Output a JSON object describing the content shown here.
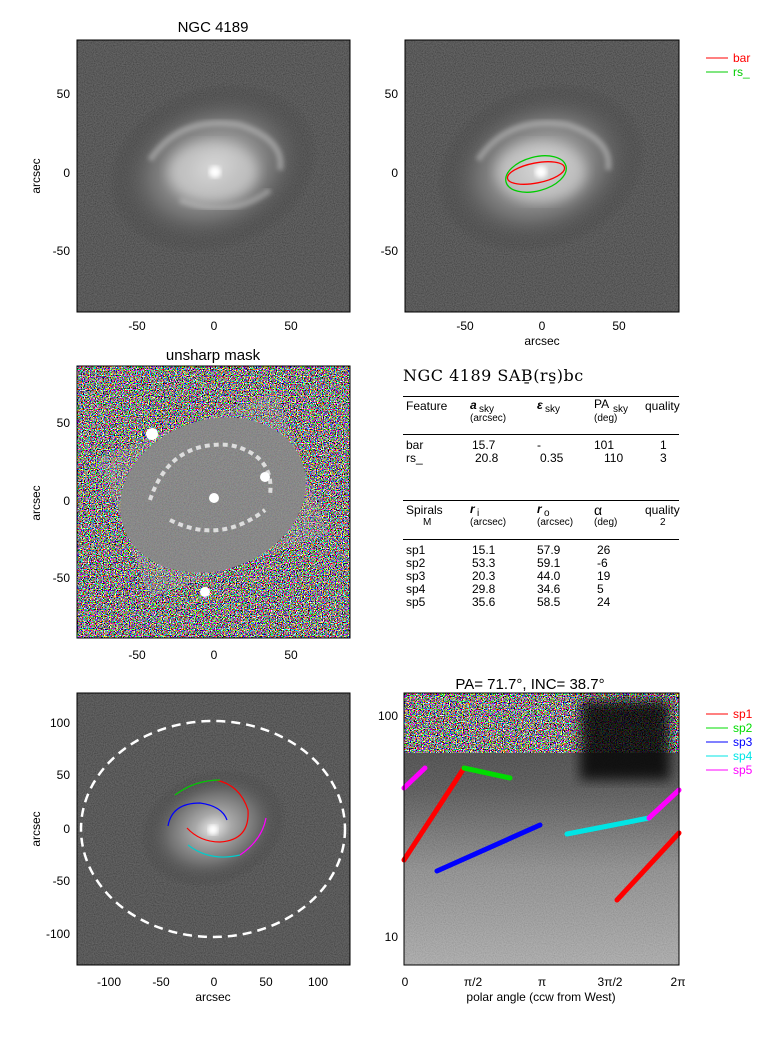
{
  "panel1": {
    "title": "NGC 4189",
    "ylabel": "arcsec",
    "yticks": [
      "50",
      "0",
      "-50"
    ],
    "xticks": [
      "-50",
      "0",
      "50"
    ]
  },
  "panel2": {
    "xlabel": "arcsec",
    "yticks": [
      "50",
      "0",
      "-50"
    ],
    "xticks": [
      "-50",
      "0",
      "50"
    ],
    "legend": [
      {
        "label": "bar",
        "color": "#ff0000"
      },
      {
        "label": "rs_",
        "color": "#00cc00"
      }
    ]
  },
  "panel3": {
    "title": "unsharp mask",
    "ylabel": "arcsec",
    "yticks": [
      "50",
      "0",
      "-50"
    ],
    "xticks": [
      "-50",
      "0",
      "50"
    ]
  },
  "table": {
    "title": "NGC 4189   SAḆ(rs̱)bc",
    "features_header": {
      "feature": "Feature",
      "a": "a",
      "a_sub": "sky",
      "a_unit": "(arcsec)",
      "eps": "ε",
      "eps_sub": "sky",
      "pa": "PA",
      "pa_sub": "sky",
      "pa_unit": "(deg)",
      "quality": "quality"
    },
    "features": [
      {
        "name": "bar",
        "a": "15.7",
        "eps": "-",
        "pa": "101",
        "q": "1"
      },
      {
        "name": "rs_",
        "a": "20.8",
        "eps": "0.35",
        "pa": "110",
        "q": "3"
      }
    ],
    "spirals_header": {
      "spirals": "Spirals",
      "m": "M",
      "ri": "r",
      "ri_sub": "i",
      "ri_unit": "(arcsec)",
      "ro": "r",
      "ro_sub": "o",
      "ro_unit": "(arcsec)",
      "alpha": "α",
      "alpha_unit": "(deg)",
      "quality": "quality",
      "quality_val": "2"
    },
    "spirals": [
      {
        "name": "sp1",
        "ri": "15.1",
        "ro": "57.9",
        "alpha": "26"
      },
      {
        "name": "sp2",
        "ri": "53.3",
        "ro": "59.1",
        "alpha": "-6"
      },
      {
        "name": "sp3",
        "ri": "20.3",
        "ro": "44.0",
        "alpha": "19"
      },
      {
        "name": "sp4",
        "ri": "29.8",
        "ro": "34.6",
        "alpha": "5"
      },
      {
        "name": "sp5",
        "ri": "35.6",
        "ro": "58.5",
        "alpha": "24"
      }
    ]
  },
  "panel5": {
    "xlabel": "arcsec",
    "ylabel": "arcsec",
    "yticks": [
      "100",
      "50",
      "0",
      "-50",
      "-100"
    ],
    "xticks": [
      "-100",
      "-50",
      "0",
      "50",
      "100"
    ]
  },
  "panel6": {
    "title": "PA=  71.7°, INC=  38.7°",
    "xlabel": "polar angle (ccw from West)",
    "yticks": [
      "100",
      "10"
    ],
    "xticks": [
      "0",
      "π/2",
      "π",
      "3π/2",
      "2π"
    ],
    "legend": [
      {
        "label": "sp1",
        "color": "#ff0000"
      },
      {
        "label": "sp2",
        "color": "#00dd00"
      },
      {
        "label": "sp3",
        "color": "#0000ff"
      },
      {
        "label": "sp4",
        "color": "#00e5e5"
      },
      {
        "label": "sp5",
        "color": "#ff00ff"
      }
    ]
  },
  "colors": {
    "bar": "#ff0000",
    "rs": "#00cc00",
    "sp1": "#ff0000",
    "sp2": "#00dd00",
    "sp3": "#0000ff",
    "sp4": "#00e5e5",
    "sp5": "#ff00ff"
  }
}
